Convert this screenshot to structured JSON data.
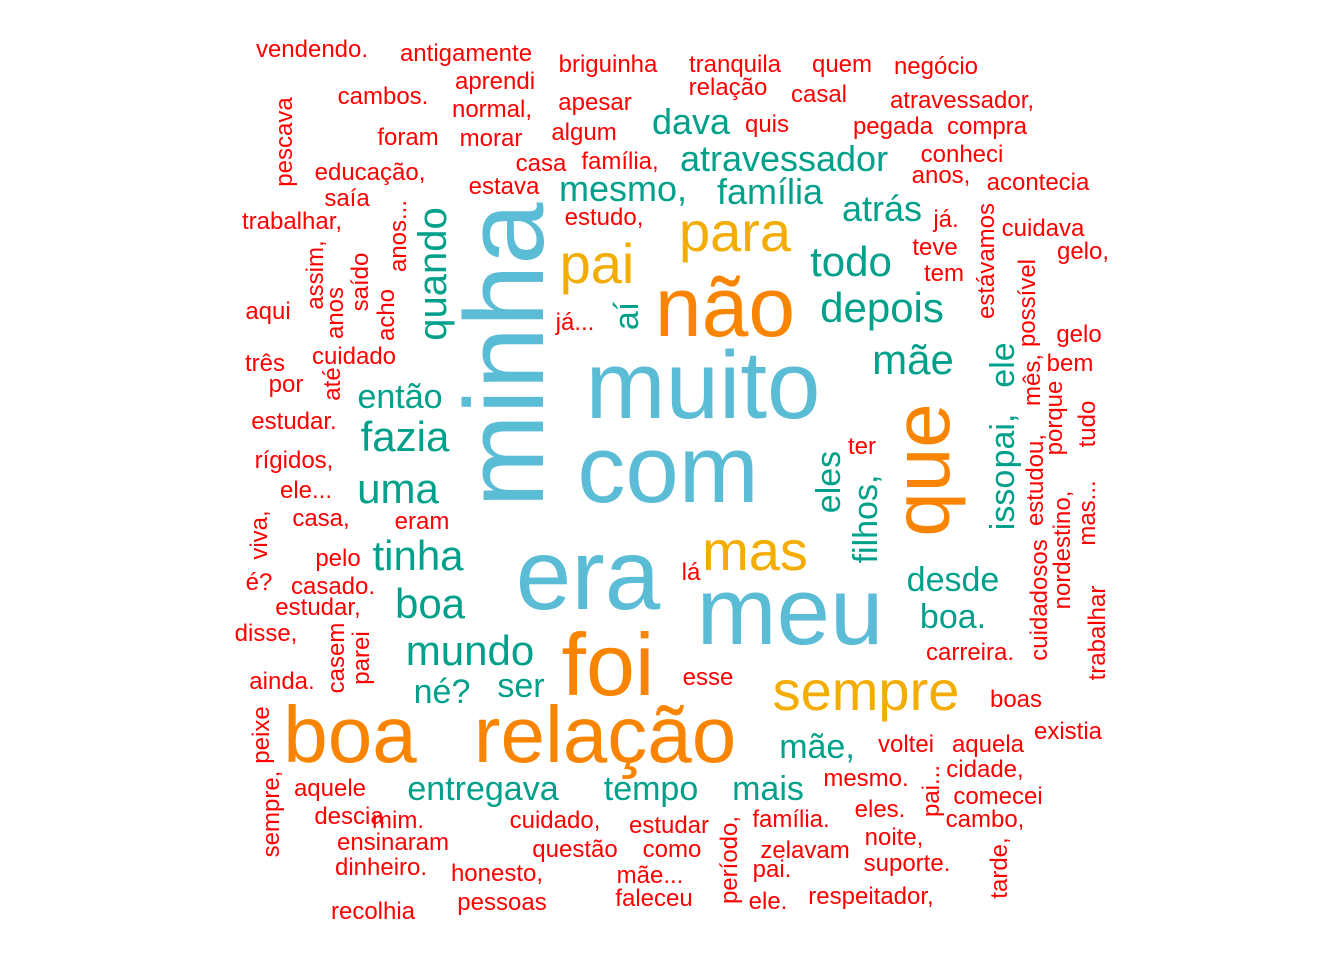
{
  "colors": {
    "c1": "#5BBCD6",
    "c2": "#F98400",
    "c3": "#F2AD00",
    "c4": "#00A08A",
    "c5": "#FF0000"
  },
  "words": [
    {
      "text": "minha",
      "tier": "c1",
      "vertical": true
    },
    {
      "text": "muito",
      "tier": "c1"
    },
    {
      "text": "com",
      "tier": "c1"
    },
    {
      "text": "era",
      "tier": "c1"
    },
    {
      "text": "meu",
      "tier": "c1"
    },
    {
      "text": "não",
      "tier": "c2"
    },
    {
      "text": "que",
      "tier": "c2",
      "vertical": true
    },
    {
      "text": "foi",
      "tier": "c2"
    },
    {
      "text": "boa",
      "tier": "c2"
    },
    {
      "text": "relação",
      "tier": "c2"
    },
    {
      "text": "para",
      "tier": "c3"
    },
    {
      "text": "pai",
      "tier": "c3"
    },
    {
      "text": "mas",
      "tier": "c3"
    },
    {
      "text": "sempre",
      "tier": "c3"
    },
    {
      "text": "dava",
      "tier": "c4"
    },
    {
      "text": "atravessador",
      "tier": "c4"
    },
    {
      "text": "mesmo,",
      "tier": "c4"
    },
    {
      "text": "família",
      "tier": "c4"
    },
    {
      "text": "atrás",
      "tier": "c4"
    },
    {
      "text": "todo",
      "tier": "c4"
    },
    {
      "text": "depois",
      "tier": "c4"
    },
    {
      "text": "mãe",
      "tier": "c4"
    },
    {
      "text": "quando",
      "tier": "c4",
      "vertical": true
    },
    {
      "text": "aí",
      "tier": "c4",
      "vertical": true
    },
    {
      "text": "então",
      "tier": "c4"
    },
    {
      "text": "fazia",
      "tier": "c4"
    },
    {
      "text": "uma",
      "tier": "c4"
    },
    {
      "text": "tinha",
      "tier": "c4"
    },
    {
      "text": "boa",
      "tier": "c4"
    },
    {
      "text": "mundo",
      "tier": "c4"
    },
    {
      "text": "né?",
      "tier": "c4"
    },
    {
      "text": "ser",
      "tier": "c4"
    },
    {
      "text": "eles",
      "tier": "c4",
      "vertical": true
    },
    {
      "text": "filhos,",
      "tier": "c4",
      "vertical": true
    },
    {
      "text": "desde",
      "tier": "c4"
    },
    {
      "text": "boa.",
      "tier": "c4"
    },
    {
      "text": "isso",
      "tier": "c4",
      "vertical": true
    },
    {
      "text": "pai,",
      "tier": "c4",
      "vertical": true
    },
    {
      "text": "ele",
      "tier": "c4",
      "vertical": true
    },
    {
      "text": "mãe,",
      "tier": "c4"
    },
    {
      "text": "entregava",
      "tier": "c4"
    },
    {
      "text": "tempo",
      "tier": "c4"
    },
    {
      "text": "mais",
      "tier": "c4"
    },
    {
      "text": "vendendo.",
      "tier": "c5"
    },
    {
      "text": "antigamente",
      "tier": "c5"
    },
    {
      "text": "briguinha",
      "tier": "c5"
    },
    {
      "text": "tranquila",
      "tier": "c5"
    },
    {
      "text": "quem",
      "tier": "c5"
    },
    {
      "text": "negócio",
      "tier": "c5"
    },
    {
      "text": "aprendi",
      "tier": "c5"
    },
    {
      "text": "relação",
      "tier": "c5"
    },
    {
      "text": "casal",
      "tier": "c5"
    },
    {
      "text": "cambos.",
      "tier": "c5"
    },
    {
      "text": "normal,",
      "tier": "c5"
    },
    {
      "text": "apesar",
      "tier": "c5"
    },
    {
      "text": "atravessador,",
      "tier": "c5"
    },
    {
      "text": "pescava",
      "tier": "c5",
      "vertical": true
    },
    {
      "text": "foram",
      "tier": "c5"
    },
    {
      "text": "morar",
      "tier": "c5"
    },
    {
      "text": "algum",
      "tier": "c5"
    },
    {
      "text": "quis",
      "tier": "c5"
    },
    {
      "text": "pegada",
      "tier": "c5"
    },
    {
      "text": "compra",
      "tier": "c5"
    },
    {
      "text": "casa",
      "tier": "c5"
    },
    {
      "text": "família,",
      "tier": "c5"
    },
    {
      "text": "conheci",
      "tier": "c5"
    },
    {
      "text": "educação,",
      "tier": "c5"
    },
    {
      "text": "estava",
      "tier": "c5"
    },
    {
      "text": "anos,",
      "tier": "c5"
    },
    {
      "text": "acontecia",
      "tier": "c5"
    },
    {
      "text": "saía",
      "tier": "c5"
    },
    {
      "text": "trabalhar,",
      "tier": "c5"
    },
    {
      "text": "estudo,",
      "tier": "c5"
    },
    {
      "text": "já.",
      "tier": "c5"
    },
    {
      "text": "cuidava",
      "tier": "c5"
    },
    {
      "text": "anos...",
      "tier": "c5",
      "vertical": true
    },
    {
      "text": "estávamos",
      "tier": "c5",
      "vertical": true
    },
    {
      "text": "teve",
      "tier": "c5"
    },
    {
      "text": "gelo,",
      "tier": "c5"
    },
    {
      "text": "assim,",
      "tier": "c5",
      "vertical": true
    },
    {
      "text": "saído",
      "tier": "c5",
      "vertical": true
    },
    {
      "text": "tem",
      "tier": "c5"
    },
    {
      "text": "aqui",
      "tier": "c5"
    },
    {
      "text": "anos",
      "tier": "c5",
      "vertical": true
    },
    {
      "text": "acho",
      "tier": "c5",
      "vertical": true
    },
    {
      "text": "já...",
      "tier": "c5"
    },
    {
      "text": "possível",
      "tier": "c5",
      "vertical": true
    },
    {
      "text": "gelo",
      "tier": "c5"
    },
    {
      "text": "bem",
      "tier": "c5"
    },
    {
      "text": "três",
      "tier": "c5"
    },
    {
      "text": "cuidado",
      "tier": "c5"
    },
    {
      "text": "por",
      "tier": "c5"
    },
    {
      "text": "até",
      "tier": "c5",
      "vertical": true
    },
    {
      "text": "mês,",
      "tier": "c5",
      "vertical": true
    },
    {
      "text": "porque",
      "tier": "c5",
      "vertical": true
    },
    {
      "text": "tudo",
      "tier": "c5",
      "vertical": true
    },
    {
      "text": "estudar.",
      "tier": "c5"
    },
    {
      "text": "estudou,",
      "tier": "c5",
      "vertical": true
    },
    {
      "text": "ter",
      "tier": "c5"
    },
    {
      "text": "rígidos,",
      "tier": "c5"
    },
    {
      "text": "ele...",
      "tier": "c5"
    },
    {
      "text": "mas...",
      "tier": "c5",
      "vertical": true
    },
    {
      "text": "nordestino,",
      "tier": "c5",
      "vertical": true
    },
    {
      "text": "viva,",
      "tier": "c5",
      "vertical": true
    },
    {
      "text": "casa,",
      "tier": "c5"
    },
    {
      "text": "eram",
      "tier": "c5"
    },
    {
      "text": "cuidadosos",
      "tier": "c5",
      "vertical": true
    },
    {
      "text": "pelo",
      "tier": "c5"
    },
    {
      "text": "lá",
      "tier": "c5"
    },
    {
      "text": "é?",
      "tier": "c5"
    },
    {
      "text": "casado.",
      "tier": "c5"
    },
    {
      "text": "estudar,",
      "tier": "c5"
    },
    {
      "text": "trabalhar",
      "tier": "c5",
      "vertical": true
    },
    {
      "text": "disse,",
      "tier": "c5"
    },
    {
      "text": "casem",
      "tier": "c5",
      "vertical": true
    },
    {
      "text": "parei",
      "tier": "c5",
      "vertical": true
    },
    {
      "text": "carreira.",
      "tier": "c5"
    },
    {
      "text": "ainda.",
      "tier": "c5"
    },
    {
      "text": "esse",
      "tier": "c5"
    },
    {
      "text": "boas",
      "tier": "c5"
    },
    {
      "text": "peixe",
      "tier": "c5",
      "vertical": true
    },
    {
      "text": "existia",
      "tier": "c5"
    },
    {
      "text": "voltei",
      "tier": "c5"
    },
    {
      "text": "aquela",
      "tier": "c5"
    },
    {
      "text": "cidade,",
      "tier": "c5"
    },
    {
      "text": "mesmo.",
      "tier": "c5"
    },
    {
      "text": "pai...",
      "tier": "c5",
      "vertical": true
    },
    {
      "text": "aquele",
      "tier": "c5"
    },
    {
      "text": "comecei",
      "tier": "c5"
    },
    {
      "text": "sempre,",
      "tier": "c5",
      "vertical": true
    },
    {
      "text": "descia",
      "tier": "c5"
    },
    {
      "text": "eles.",
      "tier": "c5"
    },
    {
      "text": "cambo,",
      "tier": "c5"
    },
    {
      "text": "mim.",
      "tier": "c5"
    },
    {
      "text": "cuidado,",
      "tier": "c5"
    },
    {
      "text": "estudar",
      "tier": "c5"
    },
    {
      "text": "família.",
      "tier": "c5"
    },
    {
      "text": "ensinaram",
      "tier": "c5"
    },
    {
      "text": "noite,",
      "tier": "c5"
    },
    {
      "text": "questão",
      "tier": "c5"
    },
    {
      "text": "como",
      "tier": "c5"
    },
    {
      "text": "período,",
      "tier": "c5",
      "vertical": true
    },
    {
      "text": "zelavam",
      "tier": "c5"
    },
    {
      "text": "tarde,",
      "tier": "c5",
      "vertical": true
    },
    {
      "text": "dinheiro.",
      "tier": "c5"
    },
    {
      "text": "honesto,",
      "tier": "c5"
    },
    {
      "text": "suporte.",
      "tier": "c5"
    },
    {
      "text": "mãe...",
      "tier": "c5"
    },
    {
      "text": "pai.",
      "tier": "c5"
    },
    {
      "text": "faleceu",
      "tier": "c5"
    },
    {
      "text": "respeitador,",
      "tier": "c5"
    },
    {
      "text": "pessoas",
      "tier": "c5"
    },
    {
      "text": "ele.",
      "tier": "c5"
    },
    {
      "text": "recolhia",
      "tier": "c5"
    }
  ]
}
